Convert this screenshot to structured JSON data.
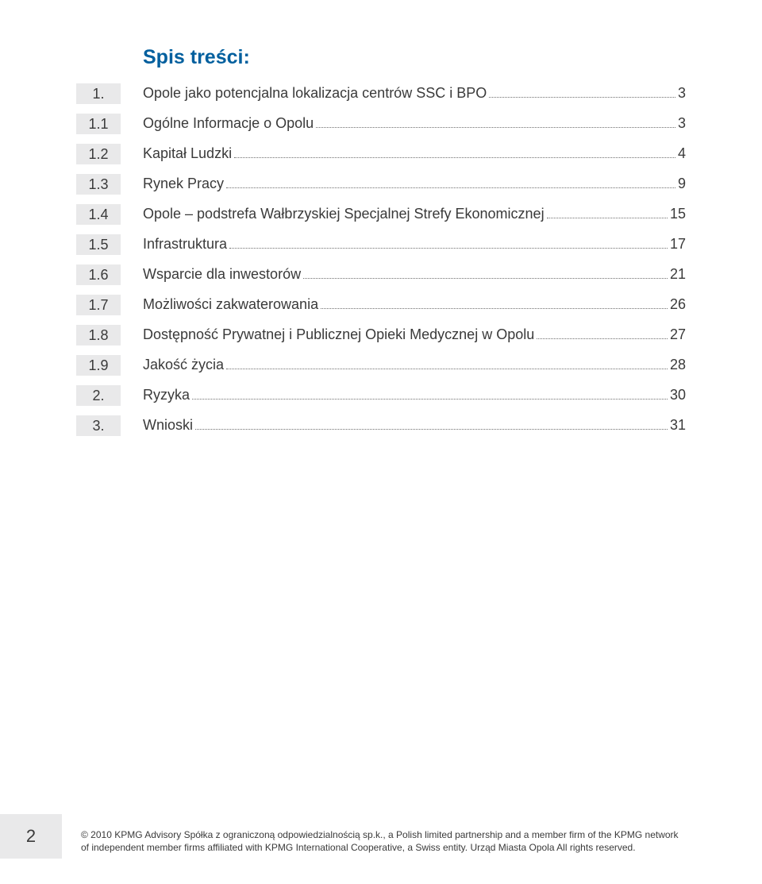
{
  "colors": {
    "title": "#005f9e",
    "text": "#3a3a3a",
    "box_bg": "#e9e9ea",
    "leader": "#6f6f6f",
    "page_bg": "#ffffff"
  },
  "toc": {
    "title": "Spis treści:",
    "title_fontsize": 25,
    "row_fontsize": 18,
    "entries": [
      {
        "num": "1.",
        "label": "Opole jako potencjalna lokalizacja centrów SSC i BPO",
        "page": "3"
      },
      {
        "num": "1.1",
        "label": "Ogólne Informacje o Opolu",
        "page": "3"
      },
      {
        "num": "1.2",
        "label": "Kapitał Ludzki",
        "page": "4"
      },
      {
        "num": "1.3",
        "label": "Rynek Pracy",
        "page": "9"
      },
      {
        "num": "1.4",
        "label": "Opole – podstrefa Wałbrzyskiej Specjalnej Strefy Ekonomicznej",
        "page": "15"
      },
      {
        "num": "1.5",
        "label": "Infrastruktura",
        "page": "17"
      },
      {
        "num": "1.6",
        "label": "Wsparcie dla inwestorów",
        "page": "21"
      },
      {
        "num": "1.7",
        "label": "Możliwości zakwaterowania",
        "page": "26"
      },
      {
        "num": "1.8",
        "label": "Dostępność Prywatnej i Publicznej Opieki Medycznej w Opolu",
        "page": "27"
      },
      {
        "num": "1.9",
        "label": "Jakość życia",
        "page": "28"
      },
      {
        "num": "2.",
        "label": "Ryzyka",
        "page": "30"
      },
      {
        "num": "3.",
        "label": "Wnioski",
        "page": "31"
      }
    ]
  },
  "footer": {
    "page_number": "2",
    "page_number_fontsize": 22,
    "text_fontsize": 12,
    "text": "© 2010 KPMG Advisory Spółka z ograniczoną odpowiedzialnością sp.k., a Polish limited partnership and a member firm of the KPMG network of independent member firms affiliated with KPMG International Cooperative, a Swiss entity. Urząd Miasta Opola All rights reserved."
  }
}
